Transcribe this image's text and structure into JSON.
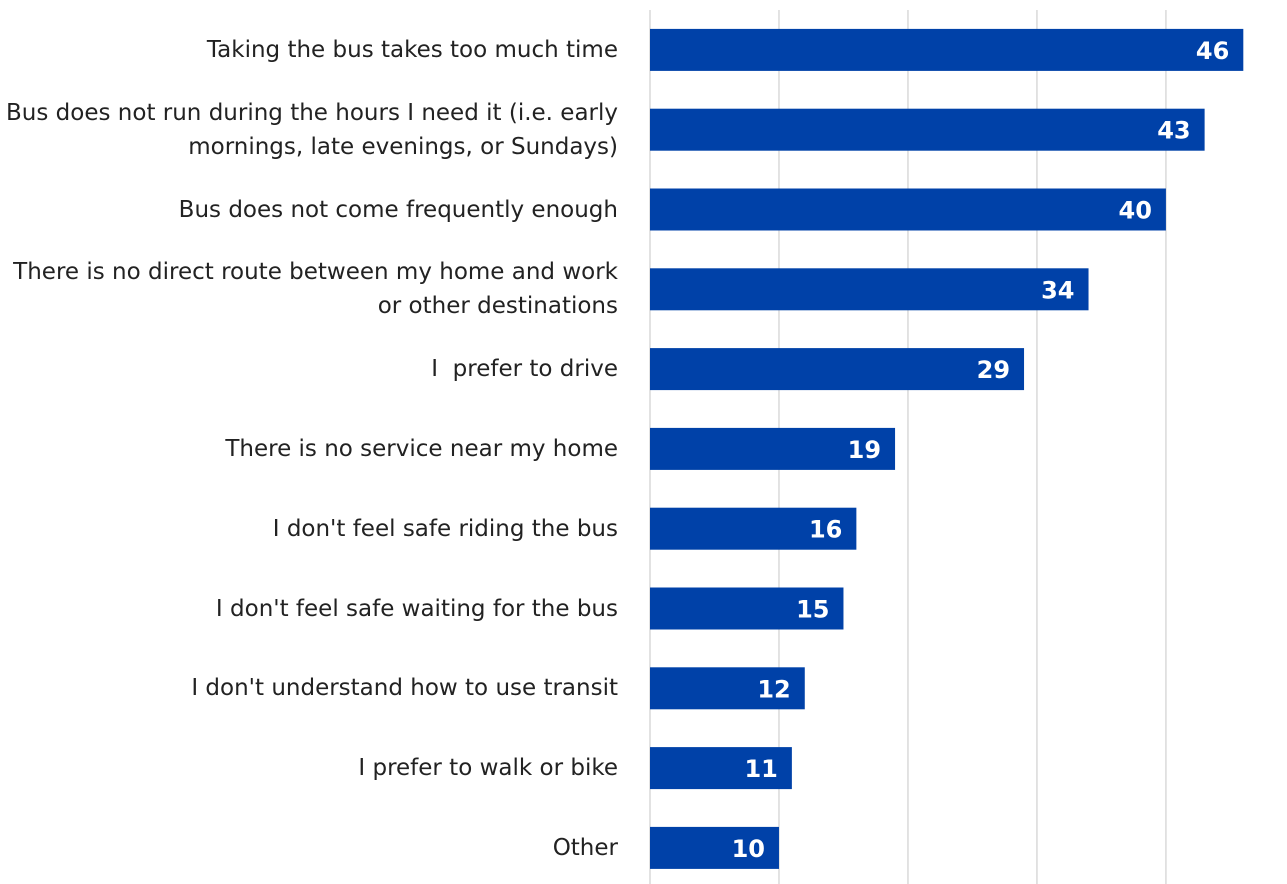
{
  "chart_data": {
    "type": "barh",
    "categories": [
      "Taking the bus takes too much time",
      "Bus does not run during the hours I need it (i.e. early mornings, late evenings, or Sundays)",
      "Bus does not come frequently enough",
      "There is no direct route between my home and work or other destinations",
      "I  prefer to drive",
      "There is no service near my home",
      "I don't feel safe riding the bus",
      "I don't feel safe waiting for the bus",
      "I don't understand how to use transit",
      "I prefer to walk or bike",
      "Other"
    ],
    "values": [
      46,
      43,
      40,
      34,
      29,
      19,
      16,
      15,
      12,
      11,
      10
    ],
    "color": "#0041a8",
    "xlim": [
      0,
      49
    ],
    "xticks": [
      0,
      10,
      20,
      30,
      40
    ],
    "grid": true
  }
}
